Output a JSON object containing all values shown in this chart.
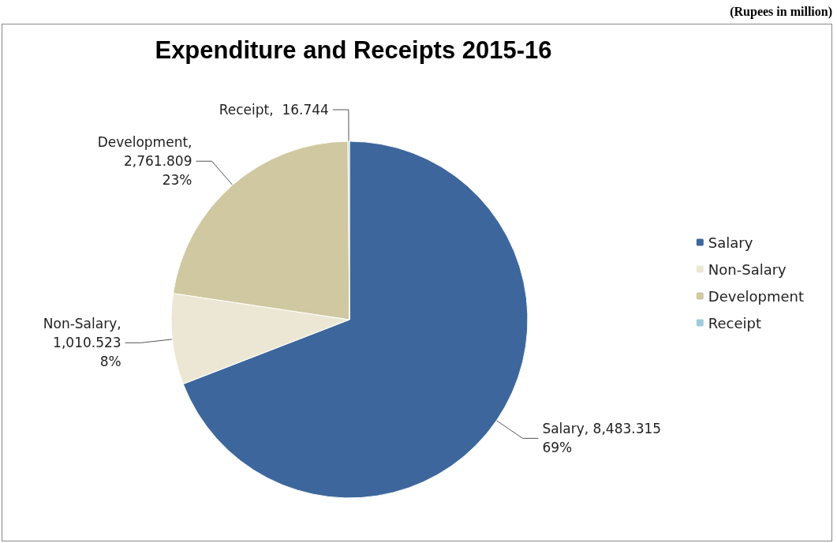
{
  "chart_data": {
    "type": "pie",
    "title": "Expenditure and Receipts 2015-16",
    "annotations": [
      "(Rupees in million)"
    ],
    "categories": [
      "Salary",
      "Non-Salary",
      "Development",
      "Receipt"
    ],
    "values": [
      8483.315,
      1010.523,
      2761.809,
      16.744
    ],
    "value_labels": [
      "Salary, 8,483.315\n69%",
      "Non-Salary,\n1,010.523\n8%",
      "Development,\n2,761.809\n23%",
      "Receipt,  16.744"
    ],
    "colors": [
      "#3d679c",
      "#ece7d4",
      "#cfc8a0",
      "#9ecbe0"
    ],
    "legend": "right"
  }
}
